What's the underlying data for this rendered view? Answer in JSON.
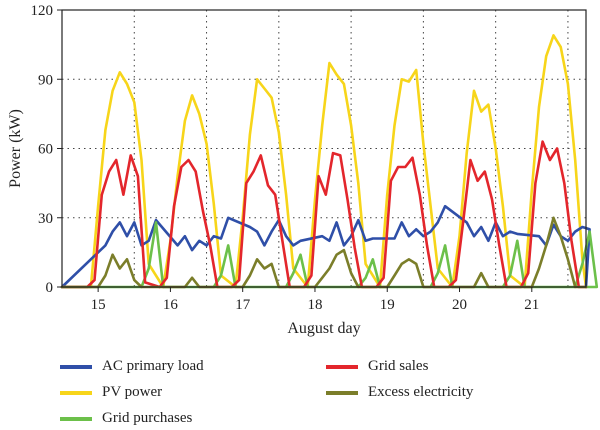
{
  "chart_data": {
    "type": "line",
    "title": "",
    "xlabel": "August day",
    "ylabel": "Power (kW)",
    "ylim": [
      0,
      120
    ],
    "xlim": [
      14.5,
      21.75
    ],
    "yticks": [
      0,
      30,
      60,
      90,
      120
    ],
    "xticks": [
      15,
      16,
      17,
      18,
      19,
      20,
      21
    ],
    "grid": "dotted",
    "legend_position": "bottom",
    "series": [
      {
        "name": "AC primary load",
        "color": "#2f4fa8",
        "x": [
          15.1,
          15.2,
          15.3,
          15.4,
          15.5,
          15.6,
          15.7,
          15.8,
          16.1,
          16.2,
          16.3,
          16.4,
          16.5,
          16.6,
          16.7,
          16.8,
          17.1,
          17.2,
          17.3,
          17.4,
          17.5,
          17.6,
          17.7,
          17.8,
          18.1,
          18.2,
          18.3,
          18.4,
          18.5,
          18.6,
          18.7,
          18.8,
          19.1,
          19.2,
          19.3,
          19.4,
          19.5,
          19.6,
          19.7,
          19.8,
          20.1,
          20.2,
          20.3,
          20.4,
          20.5,
          20.6,
          20.7,
          20.8,
          21.1,
          21.2,
          21.3,
          21.4,
          21.5,
          21.6,
          21.7,
          21.8
        ],
        "y": [
          18,
          24,
          28,
          22,
          28,
          18,
          20,
          29,
          18,
          22,
          16,
          20,
          18,
          22,
          21,
          30,
          26,
          24,
          18,
          24,
          29,
          22,
          18,
          20,
          22,
          20,
          28,
          18,
          22,
          29,
          20,
          21,
          21,
          28,
          22,
          25,
          22,
          24,
          28,
          35,
          28,
          22,
          26,
          20,
          28,
          22,
          24,
          23,
          22,
          18,
          27,
          22,
          20,
          24,
          26,
          25
        ]
      },
      {
        "name": "PV power",
        "color": "#f7d51a",
        "x": [
          14.9,
          15.0,
          15.1,
          15.2,
          15.3,
          15.4,
          15.5,
          15.6,
          15.7,
          15.9,
          16.0,
          16.1,
          16.2,
          16.3,
          16.4,
          16.5,
          16.6,
          16.7,
          16.9,
          17.0,
          17.1,
          17.2,
          17.3,
          17.4,
          17.5,
          17.6,
          17.7,
          17.9,
          18.0,
          18.1,
          18.2,
          18.3,
          18.4,
          18.5,
          18.6,
          18.7,
          18.9,
          19.0,
          19.1,
          19.2,
          19.3,
          19.4,
          19.5,
          19.6,
          19.7,
          19.9,
          20.0,
          20.1,
          20.2,
          20.3,
          20.4,
          20.5,
          20.6,
          20.7,
          20.9,
          21.0,
          21.1,
          21.2,
          21.3,
          21.4,
          21.5,
          21.6,
          21.7
        ],
        "y": [
          0,
          35,
          68,
          85,
          93,
          88,
          80,
          55,
          10,
          0,
          20,
          48,
          72,
          83,
          75,
          62,
          36,
          5,
          0,
          30,
          66,
          90,
          86,
          82,
          67,
          40,
          8,
          0,
          38,
          70,
          97,
          92,
          88,
          70,
          45,
          10,
          0,
          40,
          70,
          90,
          89,
          94,
          62,
          35,
          8,
          0,
          22,
          58,
          85,
          76,
          79,
          60,
          35,
          5,
          0,
          42,
          78,
          100,
          109,
          104,
          88,
          55,
          12
        ]
      },
      {
        "name": "Grid purchases",
        "color": "#6cc04a",
        "x": [
          14.8,
          15.0,
          15.2,
          15.4,
          15.5,
          15.6,
          15.7,
          15.8,
          15.9,
          16.5,
          16.6,
          16.7,
          16.8,
          16.9,
          17.5,
          17.6,
          17.7,
          17.8,
          17.9,
          18.5,
          18.6,
          18.7,
          18.8,
          18.9,
          19.5,
          19.6,
          19.7,
          19.8,
          19.9,
          20.5,
          20.6,
          20.7,
          20.8,
          20.9,
          21.5,
          21.6,
          21.7,
          21.8,
          21.9
        ],
        "y": [
          0,
          0,
          0,
          0,
          0,
          0,
          8,
          28,
          0,
          0,
          0,
          5,
          18,
          0,
          0,
          0,
          6,
          14,
          0,
          0,
          0,
          4,
          12,
          0,
          0,
          0,
          6,
          18,
          0,
          0,
          0,
          5,
          20,
          0,
          0,
          0,
          10,
          24,
          0
        ]
      },
      {
        "name": "Grid sales",
        "color": "#e3262c",
        "x": [
          14.85,
          14.95,
          15.05,
          15.15,
          15.25,
          15.35,
          15.45,
          15.55,
          15.65,
          15.85,
          15.95,
          16.05,
          16.15,
          16.25,
          16.35,
          16.45,
          16.55,
          16.65,
          16.85,
          16.95,
          17.05,
          17.15,
          17.25,
          17.35,
          17.45,
          17.55,
          17.65,
          17.85,
          17.95,
          18.05,
          18.15,
          18.25,
          18.35,
          18.45,
          18.55,
          18.65,
          18.85,
          18.95,
          19.05,
          19.15,
          19.25,
          19.35,
          19.45,
          19.55,
          19.65,
          19.85,
          19.95,
          20.05,
          20.15,
          20.25,
          20.35,
          20.45,
          20.55,
          20.65,
          20.85,
          20.95,
          21.05,
          21.15,
          21.25,
          21.35,
          21.45,
          21.55,
          21.65
        ],
        "y": [
          0,
          3,
          40,
          50,
          55,
          40,
          57,
          48,
          2,
          0,
          4,
          35,
          52,
          55,
          50,
          33,
          18,
          0,
          0,
          3,
          45,
          50,
          57,
          44,
          40,
          20,
          0,
          0,
          5,
          48,
          40,
          58,
          57,
          38,
          17,
          0,
          0,
          4,
          46,
          52,
          52,
          56,
          40,
          18,
          0,
          0,
          3,
          28,
          55,
          46,
          50,
          38,
          18,
          0,
          0,
          6,
          45,
          63,
          55,
          60,
          45,
          20,
          0
        ]
      },
      {
        "name": "Excess electricity",
        "color": "#7b7e2a",
        "x": [
          15.0,
          15.1,
          15.2,
          15.3,
          15.4,
          15.5,
          15.6,
          16.0,
          16.2,
          16.3,
          16.4,
          16.6,
          17.0,
          17.1,
          17.2,
          17.3,
          17.4,
          17.5,
          18.0,
          18.1,
          18.2,
          18.3,
          18.4,
          18.5,
          18.6,
          19.0,
          19.1,
          19.2,
          19.3,
          19.4,
          19.5,
          20.0,
          20.2,
          20.3,
          20.4,
          20.6,
          21.0,
          21.1,
          21.2,
          21.3,
          21.4,
          21.5,
          21.6
        ],
        "y": [
          0,
          5,
          14,
          8,
          12,
          3,
          0,
          0,
          0,
          4,
          0,
          0,
          0,
          5,
          12,
          8,
          10,
          0,
          0,
          4,
          8,
          14,
          16,
          6,
          0,
          0,
          5,
          10,
          12,
          10,
          0,
          0,
          0,
          6,
          0,
          0,
          0,
          8,
          18,
          30,
          22,
          12,
          0
        ]
      }
    ]
  }
}
